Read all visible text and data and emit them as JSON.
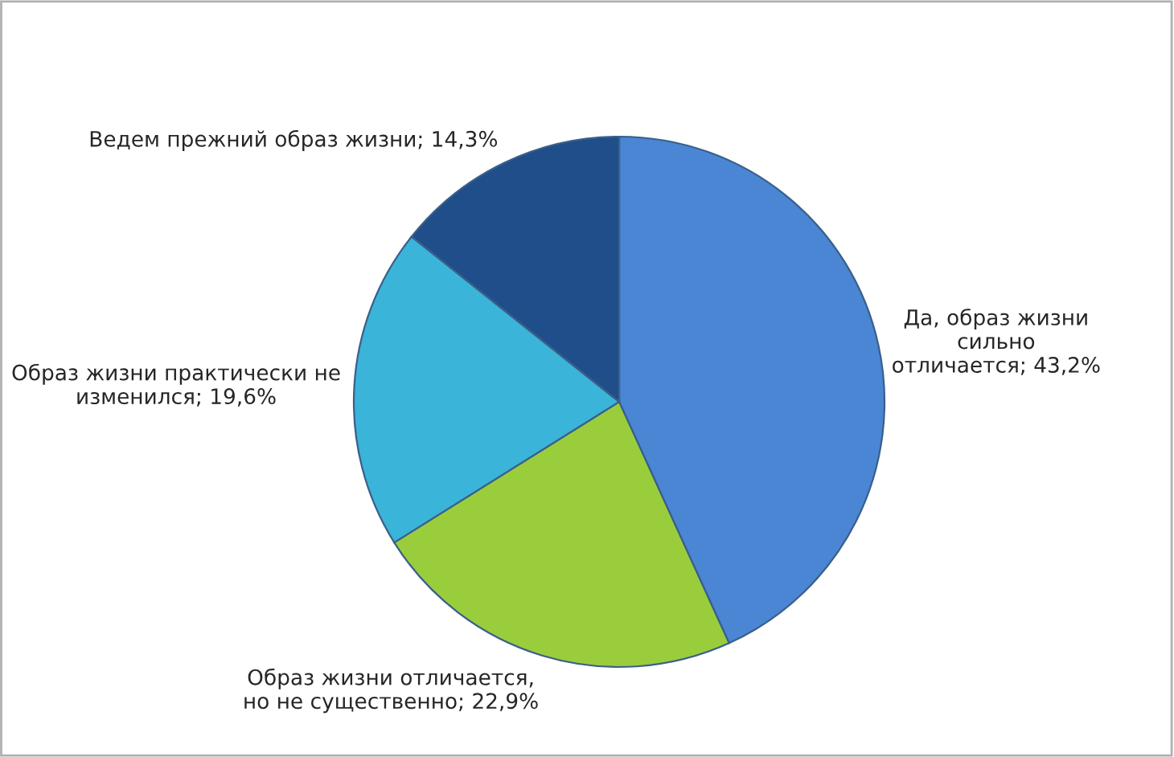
{
  "chart_data": {
    "type": "pie",
    "categories": [
      "Да, образ жизни\nсильно\nотличается",
      "Образ жизни отличается,\nно не существенно",
      "Образ жизни практически не\nизменился",
      "Ведем прежний образ жизни"
    ],
    "values": [
      43.2,
      22.9,
      19.6,
      14.3
    ],
    "value_labels": [
      "43,2%",
      "22,9%",
      "19,6%",
      "14,3%"
    ],
    "colors": [
      "#4a86d4",
      "#9acd3c",
      "#3ab4d8",
      "#1f4e8a"
    ]
  }
}
